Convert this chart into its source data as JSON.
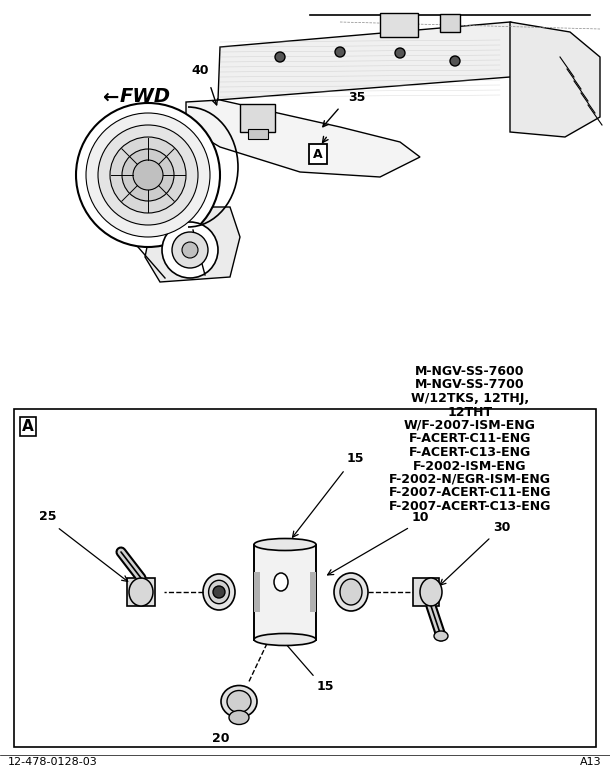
{
  "bg_color": "#ffffff",
  "footer_left": "12-478-0128-03",
  "footer_right": "A13",
  "label_A_box": "A",
  "top_labels": {
    "fwd_text": "FWD",
    "fwd_arrow": "←",
    "num40": "40",
    "num35": "35",
    "boxA": "A"
  },
  "model_lines": [
    "M-NGV-SS-7600",
    "M-NGV-SS-7700",
    "W/12TKS, 12THJ,",
    "12THT",
    "W/F-2007-ISM-ENG",
    "F-ACERT-C11-ENG",
    "F-ACERT-C13-ENG",
    "F-2002-ISM-ENG",
    "F-2002-N/EGR-ISM-ENG",
    "F-2007-ACERT-C11-ENG",
    "F-2007-ACERT-C13-ENG"
  ],
  "bottom_num15_top": "15",
  "bottom_num10": "10",
  "bottom_num25": "25",
  "bottom_num30": "30",
  "bottom_num15_bot": "15",
  "bottom_num20": "20",
  "lc": "#000000",
  "tc": "#000000",
  "fs_label": 9,
  "fs_footer": 8,
  "fs_model": 9
}
